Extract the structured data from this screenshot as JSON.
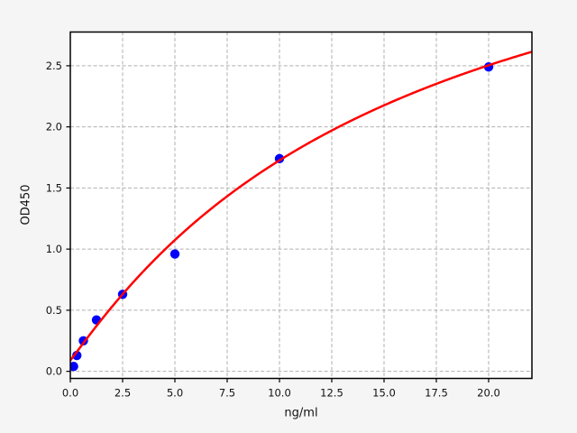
{
  "figure": {
    "background": "#f5f5f5",
    "plot_background": "#ffffff",
    "grid_color": "#b0b0b0",
    "spine_color": "#000000",
    "tick_color": "#000000",
    "text_color": "#111111"
  },
  "chart_data": {
    "type": "scatter",
    "title": "",
    "xlabel": "ng/ml",
    "ylabel": "OD450",
    "xlim": [
      0,
      22.07
    ],
    "ylim": [
      -0.058,
      2.776
    ],
    "grid": true,
    "legend": "none",
    "x_ticks": [
      0,
      2.5,
      5,
      7.5,
      10,
      12.5,
      15,
      17.5,
      20
    ],
    "x_tick_labels": [
      "0.0",
      "2.5",
      "5.0",
      "7.5",
      "10.0",
      "12.5",
      "15.0",
      "17.5",
      "20.0"
    ],
    "y_ticks": [
      0,
      0.5,
      1,
      1.5,
      2,
      2.5
    ],
    "y_tick_labels": [
      "0.0",
      "0.5",
      "1.0",
      "1.5",
      "2.0",
      "2.5"
    ],
    "series": [
      {
        "name": "standard-points",
        "type": "scatter",
        "color": "#0000ff",
        "x": [
          0.156,
          0.312,
          0.625,
          1.25,
          2.5,
          5,
          10,
          20
        ],
        "y": [
          0.04,
          0.13,
          0.25,
          0.42,
          0.63,
          0.96,
          1.74,
          2.49
        ]
      },
      {
        "name": "fit-curve",
        "type": "line",
        "color": "#ff0000",
        "model": "4PL",
        "params": {
          "a": 0.09,
          "b": 1.04,
          "c": 16.5,
          "d": 4.48
        },
        "x_range": [
          0,
          22.07
        ]
      }
    ]
  }
}
